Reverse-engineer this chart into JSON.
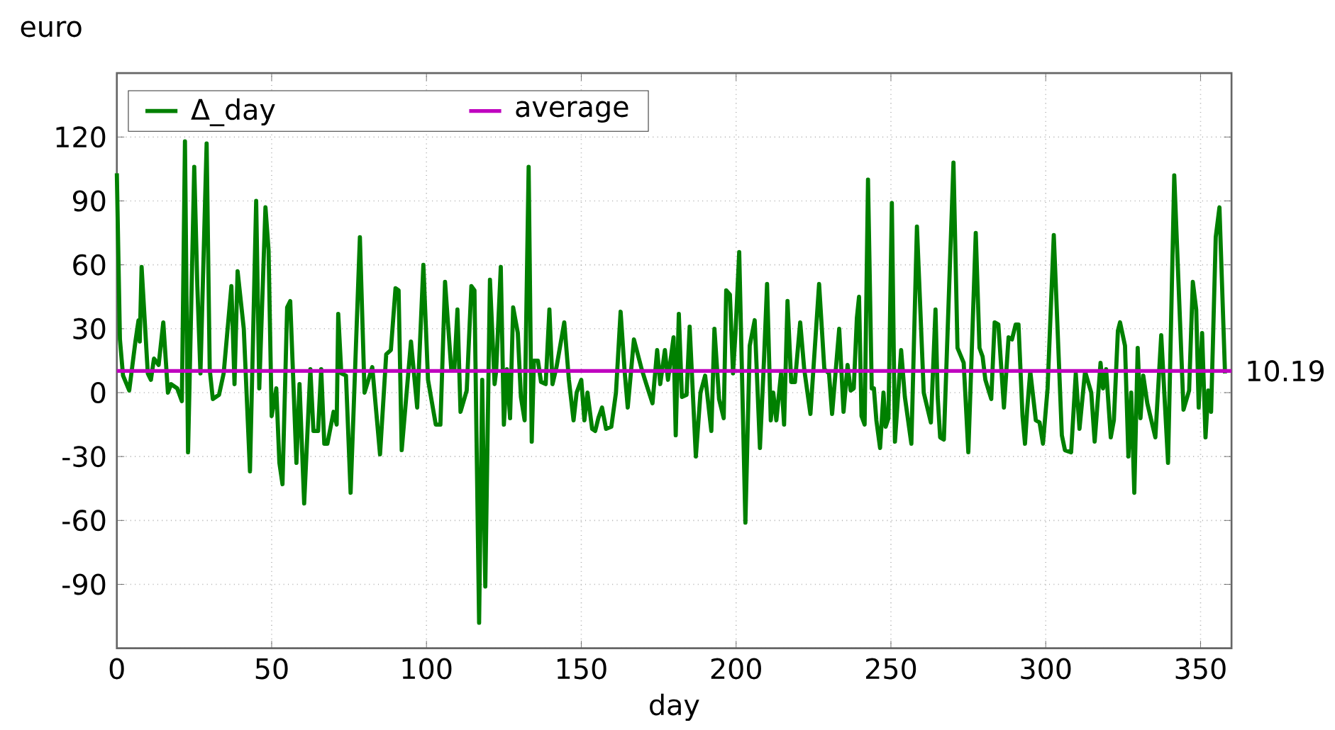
{
  "chart_data": {
    "type": "line",
    "xlabel": "day",
    "ylabel": "euro",
    "xlim": [
      0,
      360
    ],
    "ylim": [
      -120,
      150
    ],
    "xticks": [
      0,
      50,
      100,
      150,
      200,
      250,
      300,
      350
    ],
    "yticks": [
      {
        "value": -120,
        "label": null
      },
      -90,
      -60,
      -30,
      0,
      30,
      60,
      90,
      120,
      {
        "value": 150,
        "label": null
      }
    ],
    "grid": true,
    "legend": "top left",
    "line_style": "solid",
    "marker": "none",
    "series": [
      {
        "name": "Δ_day",
        "color": "#008000",
        "x": [
          0,
          1,
          2,
          4,
          6,
          7,
          7.4,
          8,
          10,
          11,
          12,
          13.5,
          15,
          16.5,
          17.5,
          19.5,
          21,
          22,
          23,
          25,
          26,
          27,
          29,
          30,
          31,
          33,
          34.5,
          37,
          38,
          39,
          41,
          43,
          45,
          46,
          48,
          49,
          50,
          51.5,
          52.5,
          53.5,
          55,
          56,
          58,
          59,
          60.5,
          62.5,
          63.5,
          65,
          66,
          67,
          68,
          70,
          71,
          71.5,
          72.5,
          74,
          75.5,
          78.5,
          80,
          82.5,
          85,
          87,
          88.5,
          90,
          91,
          92,
          95,
          97,
          99,
          100.5,
          103,
          104.5,
          106,
          108,
          109,
          110,
          111,
          113,
          114.5,
          115.5,
          117,
          118,
          119,
          120.5,
          122,
          122.5,
          124,
          125,
          126,
          127,
          128,
          129.5,
          130.5,
          131.7,
          133,
          134,
          134.7,
          136,
          137,
          138.5,
          139.7,
          140.7,
          142,
          144.5,
          146,
          147.5,
          148.5,
          150,
          151,
          152,
          153.5,
          154.5,
          155.5,
          156.7,
          158,
          159.7,
          161.2,
          162.7,
          164,
          165,
          167,
          169.5,
          171,
          173,
          174.5,
          175.5,
          177,
          178,
          179.8,
          180.5,
          181.5,
          182.5,
          184,
          185,
          187,
          188.5,
          190,
          192,
          193,
          194.5,
          196,
          196.8,
          198,
          199,
          199.8,
          201,
          203,
          204.4,
          206,
          207.7,
          209,
          210,
          211.2,
          212,
          213,
          214.5,
          215.5,
          216.6,
          217.8,
          219,
          220.7,
          222,
          224,
          226.8,
          228.5,
          230,
          231,
          233.3,
          234.7,
          236,
          237,
          238,
          239,
          239.7,
          240.5,
          241.5,
          242.6,
          243.8,
          244.5,
          245.3,
          246.5,
          247.6,
          248.3,
          249.2,
          250.3,
          251.3,
          253.3,
          254.5,
          256.6,
          258.4,
          260.6,
          262.9,
          264.4,
          265.1,
          265.9,
          267.1,
          270.2,
          271.5,
          273.5,
          275,
          277.4,
          278.6,
          279.6,
          280.5,
          282.4,
          283.5,
          284.7,
          286.5,
          288,
          289.1,
          290.3,
          291.2,
          292.5,
          293.3,
          294,
          295,
          296.8,
          298,
          299.1,
          300.6,
          302.6,
          305.2,
          306.2,
          308.2,
          309.7,
          310.9,
          312.7,
          314.7,
          315.8,
          317.7,
          318.5,
          319.5,
          321,
          322,
          323.3,
          324,
          325.6,
          326.7,
          327.6,
          328.6,
          329.7,
          330.6,
          331.5,
          332.8,
          335.4,
          337.3,
          339.5,
          341.5,
          344.5,
          346.3,
          347.5,
          348.6,
          349.4,
          350.5,
          351.6,
          352.5,
          353.4,
          354.9,
          356.1,
          357.9
        ],
        "values": [
          103,
          25,
          8,
          1,
          24,
          34,
          24,
          59,
          9,
          6,
          16,
          13,
          33,
          0,
          4,
          2,
          -4,
          118,
          -28,
          106,
          50,
          9,
          117,
          11,
          -3,
          -1,
          9,
          50,
          4,
          57,
          30,
          -37,
          90,
          2,
          87,
          67,
          -11,
          2,
          -33,
          -43,
          40,
          43,
          -33,
          4,
          -52,
          11,
          -18,
          -18,
          11,
          -24,
          -24,
          -9,
          -15,
          37,
          9,
          8,
          -47,
          73,
          0,
          12,
          -29,
          18,
          20,
          49,
          48,
          -27,
          24,
          -7,
          60,
          6,
          -15,
          -15,
          52,
          11,
          11,
          39,
          -9,
          1,
          50,
          48,
          -108,
          6,
          -91,
          53,
          4,
          10,
          59,
          -15,
          11,
          -12,
          40,
          28,
          -2,
          -13,
          106,
          -23,
          15,
          15,
          5,
          4,
          39,
          4,
          12,
          33,
          6,
          -13,
          0,
          6,
          -13,
          0,
          -17,
          -18,
          -12,
          -7,
          -17,
          -16,
          0,
          38,
          10,
          -7,
          25,
          11,
          4,
          -5,
          20,
          4,
          20,
          6,
          26,
          -20,
          37,
          -2,
          -1,
          31,
          -30,
          0,
          8,
          -18,
          30,
          -3,
          -12,
          48,
          46,
          9,
          28,
          66,
          -61,
          22,
          34,
          -26,
          15,
          51,
          -13,
          0,
          -13,
          9,
          -15,
          43,
          5,
          5,
          33,
          11,
          -10,
          51,
          11,
          9,
          -10,
          30,
          -9,
          13,
          1,
          2,
          35,
          45,
          -11,
          -15,
          100,
          2,
          2,
          -13,
          -26,
          0,
          -16,
          -12,
          89,
          -23,
          20,
          -2,
          -24,
          78,
          0,
          -14,
          39,
          -2,
          -21,
          -22,
          108,
          21,
          14,
          -28,
          75,
          21,
          17,
          6,
          -3,
          33,
          32,
          -7,
          26,
          25,
          32,
          32,
          -11,
          -24,
          -8,
          10,
          -13,
          -14,
          -24,
          2,
          74,
          -20,
          -27,
          -28,
          9,
          -17,
          10,
          0,
          -23,
          14,
          2,
          11,
          -21,
          -13,
          29,
          33,
          22,
          -30,
          0,
          -47,
          21,
          -12,
          8,
          -5,
          -21,
          27,
          -33,
          102,
          -8,
          1,
          52,
          39,
          -7,
          28,
          -21,
          1,
          -9,
          73,
          87,
          9
        ]
      },
      {
        "name": "average",
        "color": "#bf00bf",
        "x": [
          0,
          360
        ],
        "values": [
          10.19,
          10.19
        ]
      }
    ],
    "annotations": [
      {
        "text": "10.19",
        "x": 360,
        "y": 10.19
      }
    ]
  }
}
